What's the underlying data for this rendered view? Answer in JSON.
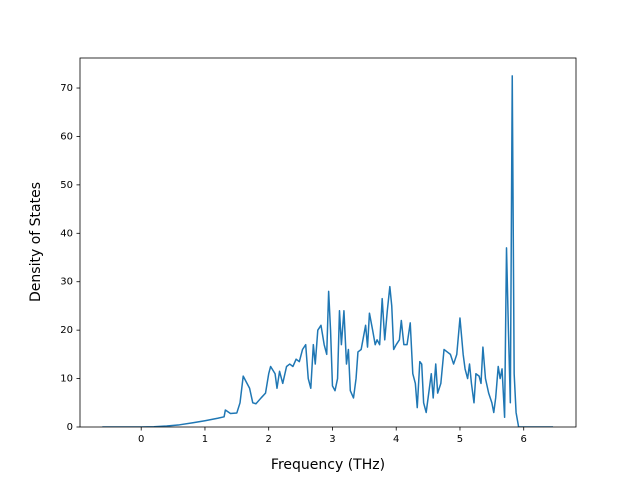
{
  "chart_data": {
    "type": "line",
    "xlabel": "Frequency (THz)",
    "ylabel": "Density of States",
    "x": [
      -0.61,
      0,
      0.2,
      0.4,
      0.6,
      0.8,
      1.0,
      1.2,
      1.3,
      1.32,
      1.4,
      1.5,
      1.55,
      1.6,
      1.7,
      1.75,
      1.8,
      1.88,
      1.95,
      2.0,
      2.03,
      2.1,
      2.13,
      2.17,
      2.22,
      2.28,
      2.33,
      2.38,
      2.43,
      2.48,
      2.53,
      2.58,
      2.62,
      2.66,
      2.7,
      2.73,
      2.77,
      2.82,
      2.87,
      2.91,
      2.94,
      2.97,
      3.0,
      3.04,
      3.08,
      3.11,
      3.14,
      3.18,
      3.22,
      3.25,
      3.28,
      3.33,
      3.37,
      3.4,
      3.45,
      3.52,
      3.55,
      3.58,
      3.63,
      3.67,
      3.7,
      3.74,
      3.78,
      3.82,
      3.86,
      3.9,
      3.93,
      3.96,
      4.0,
      4.05,
      4.08,
      4.12,
      4.17,
      4.22,
      4.26,
      4.3,
      4.33,
      4.37,
      4.4,
      4.43,
      4.47,
      4.52,
      4.55,
      4.58,
      4.62,
      4.65,
      4.7,
      4.75,
      4.8,
      4.85,
      4.9,
      4.95,
      5.0,
      5.05,
      5.08,
      5.12,
      5.15,
      5.18,
      5.22,
      5.25,
      5.3,
      5.33,
      5.36,
      5.4,
      5.45,
      5.5,
      5.53,
      5.56,
      5.6,
      5.63,
      5.66,
      5.7,
      5.73,
      5.76,
      5.79,
      5.82,
      5.85,
      5.88,
      5.92,
      6.46
    ],
    "series": [
      {
        "color": "#1f77b4",
        "values": [
          0,
          0,
          0.05,
          0.2,
          0.45,
          0.85,
          1.3,
          1.8,
          2.1,
          3.5,
          2.8,
          2.9,
          5,
          10.5,
          8,
          5,
          4.8,
          6,
          7,
          11,
          12.5,
          11,
          8,
          11.5,
          9,
          12.5,
          13,
          12.5,
          14,
          13.5,
          16,
          17,
          10,
          8,
          17,
          13,
          20,
          21,
          17,
          15,
          28,
          20,
          8.5,
          7.5,
          10,
          24,
          17,
          24,
          13,
          16,
          7.5,
          6,
          10,
          15.5,
          16,
          21,
          16.5,
          23.5,
          20,
          17,
          18,
          17,
          26.5,
          18,
          24,
          29,
          25,
          16,
          17,
          18,
          22,
          17,
          17,
          21.5,
          11,
          9,
          4,
          13.5,
          13,
          5,
          3,
          8,
          11,
          6,
          13,
          7,
          9,
          16,
          15.5,
          15,
          13,
          15,
          22.5,
          15,
          12,
          10,
          13,
          9,
          5,
          11,
          10.5,
          9,
          16.5,
          10,
          7,
          5,
          3,
          6,
          12.5,
          10,
          12,
          2,
          37,
          20,
          5,
          72.5,
          11,
          3,
          0,
          0
        ]
      }
    ],
    "xlim": [
      -0.96,
      6.82
    ],
    "ylim": [
      0,
      76.2
    ],
    "xticks": [
      0,
      1,
      2,
      3,
      4,
      5,
      6
    ],
    "yticks": [
      0,
      10,
      20,
      30,
      40,
      50,
      60,
      70
    ]
  }
}
